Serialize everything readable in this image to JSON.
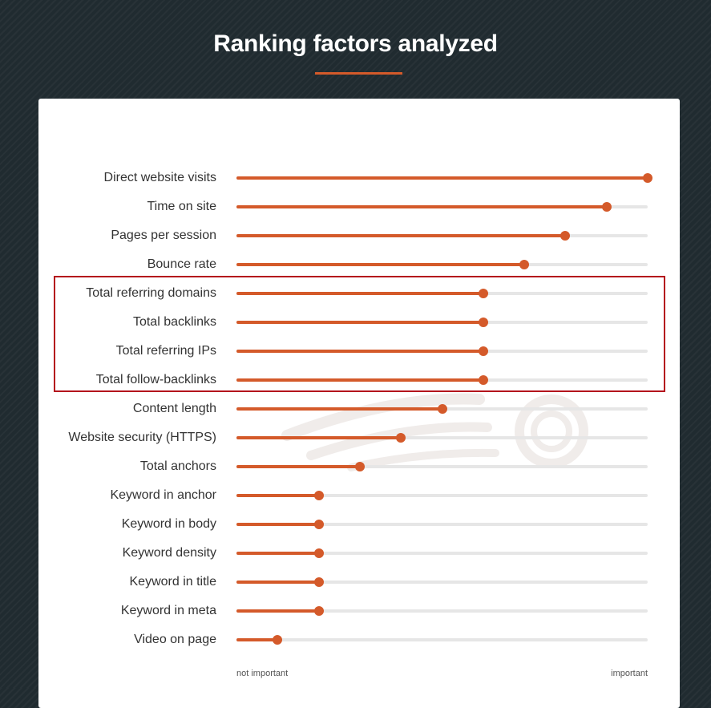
{
  "title": "Ranking factors analyzed",
  "colors": {
    "accent": "#d45a2a",
    "track": "#e6e6e6",
    "highlight": "#b40e1c",
    "background": "#202b30"
  },
  "highlight_group": [
    "Total referring domains",
    "Total backlinks",
    "Total referring IPs",
    "Total follow-backlinks"
  ],
  "chart_data": {
    "type": "bar",
    "title": "Ranking factors analyzed",
    "xlabel": "",
    "ylabel": "",
    "scale_labels": {
      "min": "not important",
      "max": "important"
    },
    "xlim": [
      0,
      1
    ],
    "grid": false,
    "categories": [
      "Direct website visits",
      "Time on site",
      "Pages per session",
      "Bounce rate",
      "Total referring domains",
      "Total backlinks",
      "Total referring IPs",
      "Total follow-backlinks",
      "Content length",
      "Website security (HTTPS)",
      "Total anchors",
      "Keyword in anchor",
      "Keyword in body",
      "Keyword density",
      "Keyword in title",
      "Keyword in meta",
      "Video on page"
    ],
    "values": [
      1.0,
      0.9,
      0.8,
      0.7,
      0.6,
      0.6,
      0.6,
      0.6,
      0.5,
      0.4,
      0.3,
      0.2,
      0.2,
      0.2,
      0.2,
      0.2,
      0.1
    ]
  }
}
